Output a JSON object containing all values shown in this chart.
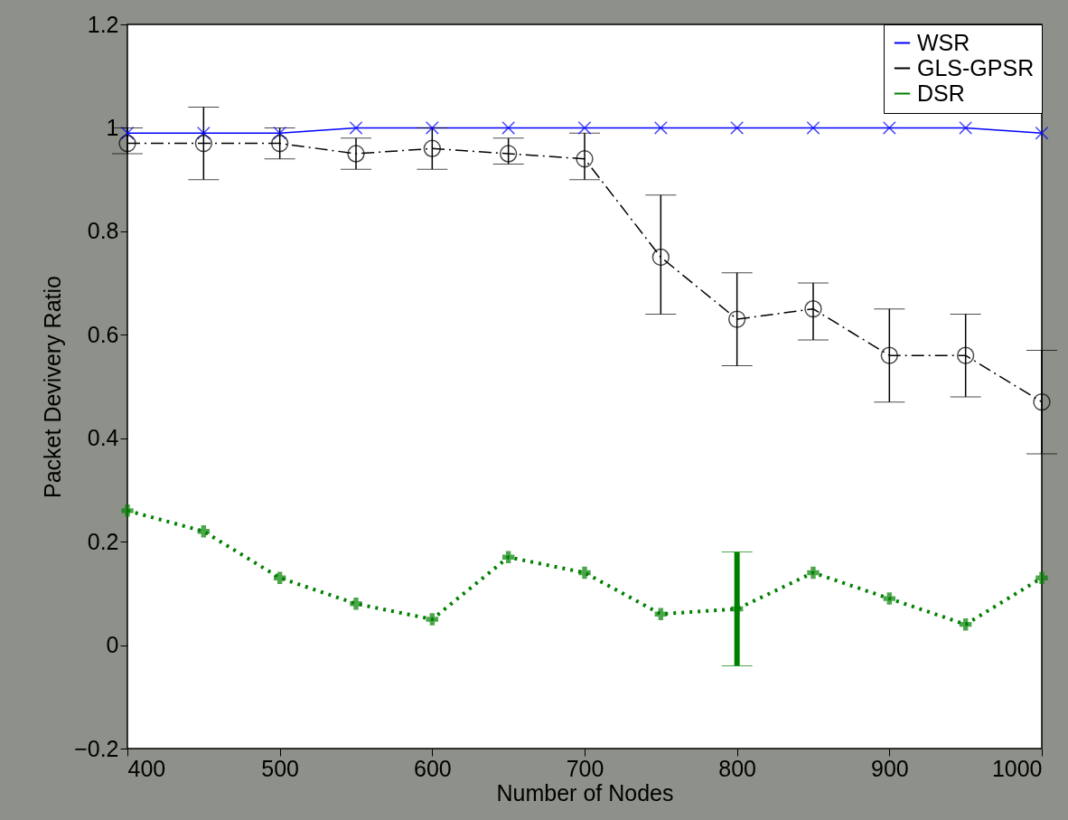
{
  "chart_data": {
    "type": "line",
    "xlabel": "Number of Nodes",
    "ylabel": "Packet Devivery Ratio",
    "x": [
      400,
      450,
      500,
      550,
      600,
      650,
      700,
      750,
      800,
      850,
      900,
      950,
      1000
    ],
    "xlim": [
      400,
      1000
    ],
    "xticks": [
      400,
      500,
      600,
      700,
      800,
      900,
      {
        "value": 1000,
        "label": "1000"
      }
    ],
    "ylim": [
      -0.2,
      1.2
    ],
    "yticks": [
      {
        "value": -0.2,
        "label": "−0.2"
      },
      0,
      0.2,
      0.4,
      0.6,
      0.8,
      1,
      1.2
    ],
    "grid": false,
    "legend": "top right",
    "series": [
      {
        "name": "WSR",
        "color": "#0000ff",
        "marker": "cross",
        "line_style": "solid",
        "values": [
          0.99,
          0.99,
          0.99,
          1,
          1,
          1,
          1,
          1,
          1,
          1,
          1,
          1,
          0.99
        ]
      },
      {
        "name": "GLS-GPSR",
        "color": "#000000",
        "marker": "circle",
        "line_style": "dashed",
        "values": [
          0.97,
          0.97,
          0.97,
          0.95,
          0.96,
          0.95,
          0.94,
          0.75,
          0.63,
          0.65,
          0.56,
          0.56,
          0.47
        ],
        "errors": [
          [
            0.95,
            1.0
          ],
          [
            0.9,
            1.04
          ],
          [
            0.94,
            1.0
          ],
          [
            0.92,
            0.98
          ],
          [
            0.92,
            1.0
          ],
          [
            0.93,
            0.98
          ],
          [
            0.9,
            0.99
          ],
          [
            0.64,
            0.87
          ],
          [
            0.54,
            0.72
          ],
          [
            0.59,
            0.7
          ],
          [
            0.47,
            0.65
          ],
          [
            0.48,
            0.64
          ],
          [
            0.37,
            0.57
          ]
        ]
      },
      {
        "name": "DSR",
        "color": "#008000",
        "marker": "cross",
        "line_style": "dotted",
        "values": [
          0.26,
          0.22,
          0.13,
          0.08,
          0.05,
          0.17,
          0.14,
          0.06,
          0.07,
          0.14,
          0.09,
          0.04,
          0.13
        ],
        "errors": [
          null,
          null,
          null,
          null,
          null,
          null,
          null,
          null,
          [
            -0.04,
            0.18
          ],
          null,
          null,
          null,
          null
        ]
      }
    ]
  }
}
